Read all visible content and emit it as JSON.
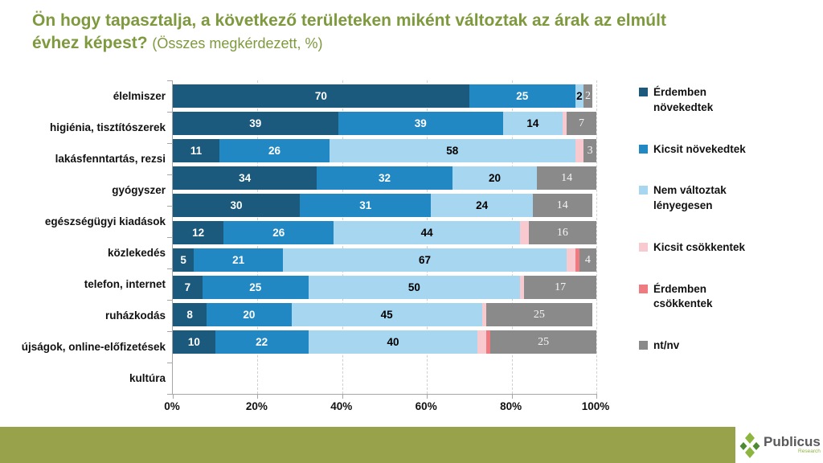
{
  "title": {
    "main": "Ön hogy tapasztalja, a következő területeken miként változtak az árak az elmúlt évhez képest?",
    "suffix": "(Összes megkérdezett, %)"
  },
  "chart_data": {
    "type": "bar",
    "orientation": "horizontal",
    "stacked": true,
    "unit": "%",
    "categories": [
      "élelmiszer",
      "higiénia, tisztítószerek",
      "lakásfenntartás, rezsi",
      "gyógyszer",
      "egészségügyi kiadások",
      "közlekedés",
      "telefon, internet",
      "ruházkodás",
      "újságok, online-előfizetések",
      "kultúra"
    ],
    "series": [
      {
        "name": "Érdemben növekedtek",
        "color": "#1B5A7D",
        "label_color": "#FFFFFF",
        "label_font": "sans",
        "values": [
          70,
          39,
          11,
          34,
          30,
          12,
          5,
          7,
          8,
          10
        ]
      },
      {
        "name": "Kicsit növekedtek",
        "color": "#2288C3",
        "label_color": "#FFFFFF",
        "label_font": "sans",
        "values": [
          25,
          39,
          26,
          32,
          31,
          26,
          21,
          25,
          20,
          22
        ]
      },
      {
        "name": "Nem változtak lényegesen",
        "color": "#A6D6F0",
        "label_color": "#000000",
        "label_font": "sans",
        "values": [
          2,
          14,
          58,
          20,
          24,
          44,
          67,
          50,
          45,
          40
        ]
      },
      {
        "name": "Kicsit csökkentek",
        "color": "#F8C9CE",
        "label_color": null,
        "label_font": null,
        "values": [
          0,
          1,
          2,
          0,
          0,
          2,
          2,
          1,
          1,
          2
        ]
      },
      {
        "name": "Érdemben csökkentek",
        "color": "#EF7B80",
        "label_color": null,
        "label_font": null,
        "values": [
          0,
          0,
          0,
          0,
          0,
          0,
          1,
          0,
          0,
          1
        ]
      },
      {
        "name": "nt/nv",
        "color": "#8A8A8A",
        "label_color": "#F5F5F5",
        "label_font": "serif",
        "values": [
          2,
          7,
          3,
          14,
          14,
          16,
          4,
          17,
          25,
          25
        ]
      }
    ],
    "x_axis": {
      "tick_labels": [
        "0%",
        "20%",
        "40%",
        "60%",
        "80%",
        "100%"
      ],
      "range": [
        0,
        100
      ],
      "grid": "vertical-dashed"
    },
    "legend_position": "right",
    "label_rule": "values of decrease series are not labeled; other segments labeled when >= 2"
  },
  "legend": {
    "items": [
      {
        "label": "Érdemben\nnövekedtek",
        "color": "#1B5A7D"
      },
      {
        "label": "Kicsit növekedtek",
        "color": "#2288C3"
      },
      {
        "label": "Nem változtak\nlényegesen",
        "color": "#A6D6F0"
      },
      {
        "label": "Kicsit csökkentek",
        "color": "#F8C9CE"
      },
      {
        "label": "Érdemben\ncsökkentek",
        "color": "#EF7B80"
      },
      {
        "label": "nt/nv",
        "color": "#8A8A8A"
      }
    ]
  },
  "footer": {
    "brand": "Publicus",
    "brand_sub": "Research",
    "bar_color": "#97A24B",
    "logo_greens": [
      "#4E8A31",
      "#8CB63F"
    ]
  }
}
